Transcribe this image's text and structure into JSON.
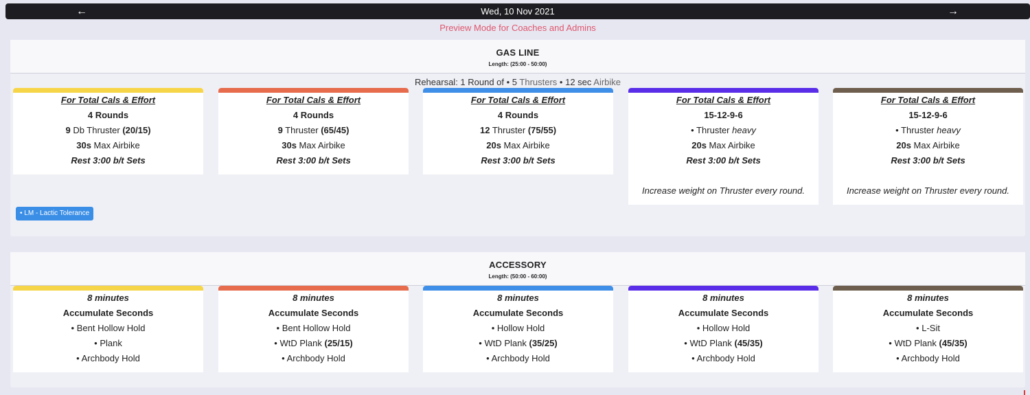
{
  "header": {
    "date": "Wed, 10 Nov 2021",
    "prev_icon": "←",
    "next_icon": "→"
  },
  "preview_notice": "Preview Mode for Coaches and Admins",
  "colors": {
    "yellow": "#f7d548",
    "orange": "#e76b4d",
    "blue": "#3f8ee8",
    "purple": "#5a2ee8",
    "brown": "#6e5e4d",
    "tag": "#3a8ee6",
    "preview": "#e0566d"
  },
  "sections": [
    {
      "title": "GAS LINE",
      "length": "Length: (25:00 - 50:00)",
      "rehearsal": {
        "prefix": "Rehearsal: 1 Round of • 5 ",
        "movement1": "Thrusters",
        "middle": " • 12 sec ",
        "movement2": "Airbike"
      },
      "tag": "• LM - Lactic Tolerance",
      "cards": [
        {
          "heading": "For Total Cals & Effort",
          "scheme": "4 Rounds",
          "line2": {
            "bold_num": "9",
            "text": " Db Thruster ",
            "bold_load": "(20/15)"
          },
          "line3": {
            "bold_num": "30s",
            "text": " Max Airbike"
          },
          "rest": "Rest 3:00 b/t Sets"
        },
        {
          "heading": "For Total Cals & Effort",
          "scheme": "4 Rounds",
          "line2": {
            "bold_num": "9",
            "text": " Thruster ",
            "bold_load": "(65/45)"
          },
          "line3": {
            "bold_num": "30s",
            "text": " Max Airbike"
          },
          "rest": "Rest 3:00 b/t Sets"
        },
        {
          "heading": "For Total Cals & Effort",
          "scheme": "4 Rounds",
          "line2": {
            "bold_num": "12",
            "text": " Thruster ",
            "bold_load": "(75/55)"
          },
          "line3": {
            "bold_num": "20s",
            "text": " Max Airbike"
          },
          "rest": "Rest 3:00 b/t Sets"
        },
        {
          "heading": "For Total Cals & Effort",
          "scheme": "15-12-9-6",
          "line2_alt": {
            "text": "• Thruster ",
            "italic": "heavy"
          },
          "line3": {
            "bold_num": "20s",
            "text": " Max Airbike"
          },
          "rest": "Rest 3:00 b/t Sets",
          "note": "Increase weight on Thruster every round."
        },
        {
          "heading": "For Total Cals & Effort",
          "scheme": "15-12-9-6",
          "line2_alt": {
            "text": "• Thruster ",
            "italic": "heavy"
          },
          "line3": {
            "bold_num": "20s",
            "text": " Max Airbike"
          },
          "rest": "Rest 3:00 b/t Sets",
          "note": "Increase weight on Thruster every round."
        }
      ]
    },
    {
      "title": "ACCESSORY",
      "length": "Length: (50:00 - 60:00)",
      "cards": [
        {
          "heading": "8 minutes",
          "scheme": "Accumulate Seconds",
          "items": [
            {
              "text": "• Bent Hollow Hold"
            },
            {
              "text": "• Plank"
            },
            {
              "text": "• Archbody Hold"
            }
          ]
        },
        {
          "heading": "8 minutes",
          "scheme": "Accumulate Seconds",
          "items": [
            {
              "text": "• Bent Hollow Hold"
            },
            {
              "text": "• WtD Plank ",
              "bold": "(25/15)"
            },
            {
              "text": "• Archbody Hold"
            }
          ]
        },
        {
          "heading": "8 minutes",
          "scheme": "Accumulate Seconds",
          "items": [
            {
              "text": "• Hollow Hold"
            },
            {
              "text": "• WtD Plank ",
              "bold": "(35/25)"
            },
            {
              "text": "• Archbody Hold"
            }
          ]
        },
        {
          "heading": "8 minutes",
          "scheme": "Accumulate Seconds",
          "items": [
            {
              "text": "• Hollow Hold"
            },
            {
              "text": "• WtD Plank ",
              "bold": "(45/35)"
            },
            {
              "text": "• Archbody Hold"
            }
          ]
        },
        {
          "heading": "8 minutes",
          "scheme": "Accumulate Seconds",
          "items": [
            {
              "text": "• L-Sit"
            },
            {
              "text": "• WtD Plank ",
              "bold": "(45/35)"
            },
            {
              "text": "• Archbody Hold"
            }
          ]
        }
      ]
    }
  ]
}
